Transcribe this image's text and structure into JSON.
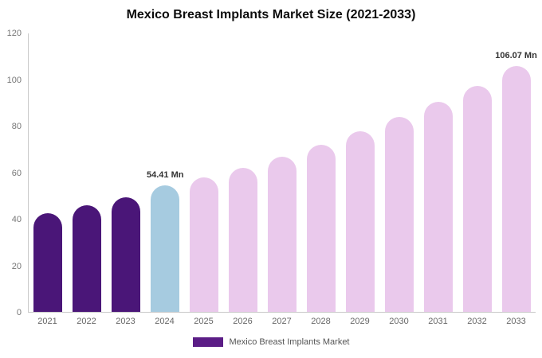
{
  "title": "Mexico Breast Implants Market Size (2021-2033)",
  "legend": {
    "label": "Mexico Breast Implants Market",
    "swatch_color": "#5b1d86"
  },
  "colors": {
    "historical": "#4a1678",
    "base_year": "#a6cbe0",
    "forecast": "#eac9ec",
    "axis_line": "#c9c9c9"
  },
  "chart_data": {
    "type": "bar",
    "title": "Mexico Breast Implants Market Size (2021-2033)",
    "categories": [
      "2021",
      "2022",
      "2023",
      "2024",
      "2025",
      "2026",
      "2027",
      "2028",
      "2029",
      "2030",
      "2031",
      "2032",
      "2033"
    ],
    "values": [
      42.5,
      46,
      49.5,
      54.41,
      58,
      62,
      67,
      72,
      78,
      84,
      90.5,
      97.5,
      106.07
    ],
    "unit": "Mn",
    "ylim": [
      0,
      120
    ],
    "yticks": [
      0,
      20,
      40,
      60,
      80,
      100,
      120
    ],
    "bar_colors": [
      "#4a1678",
      "#4a1678",
      "#4a1678",
      "#a6cbe0",
      "#eac9ec",
      "#eac9ec",
      "#eac9ec",
      "#eac9ec",
      "#eac9ec",
      "#eac9ec",
      "#eac9ec",
      "#eac9ec",
      "#eac9ec"
    ],
    "annotations": [
      {
        "category": "2024",
        "text": "54.41 Mn"
      },
      {
        "category": "2033",
        "text": "106.07 Mn"
      }
    ],
    "xlabel": "",
    "ylabel": "",
    "grid": false,
    "legend_position": "bottom"
  }
}
